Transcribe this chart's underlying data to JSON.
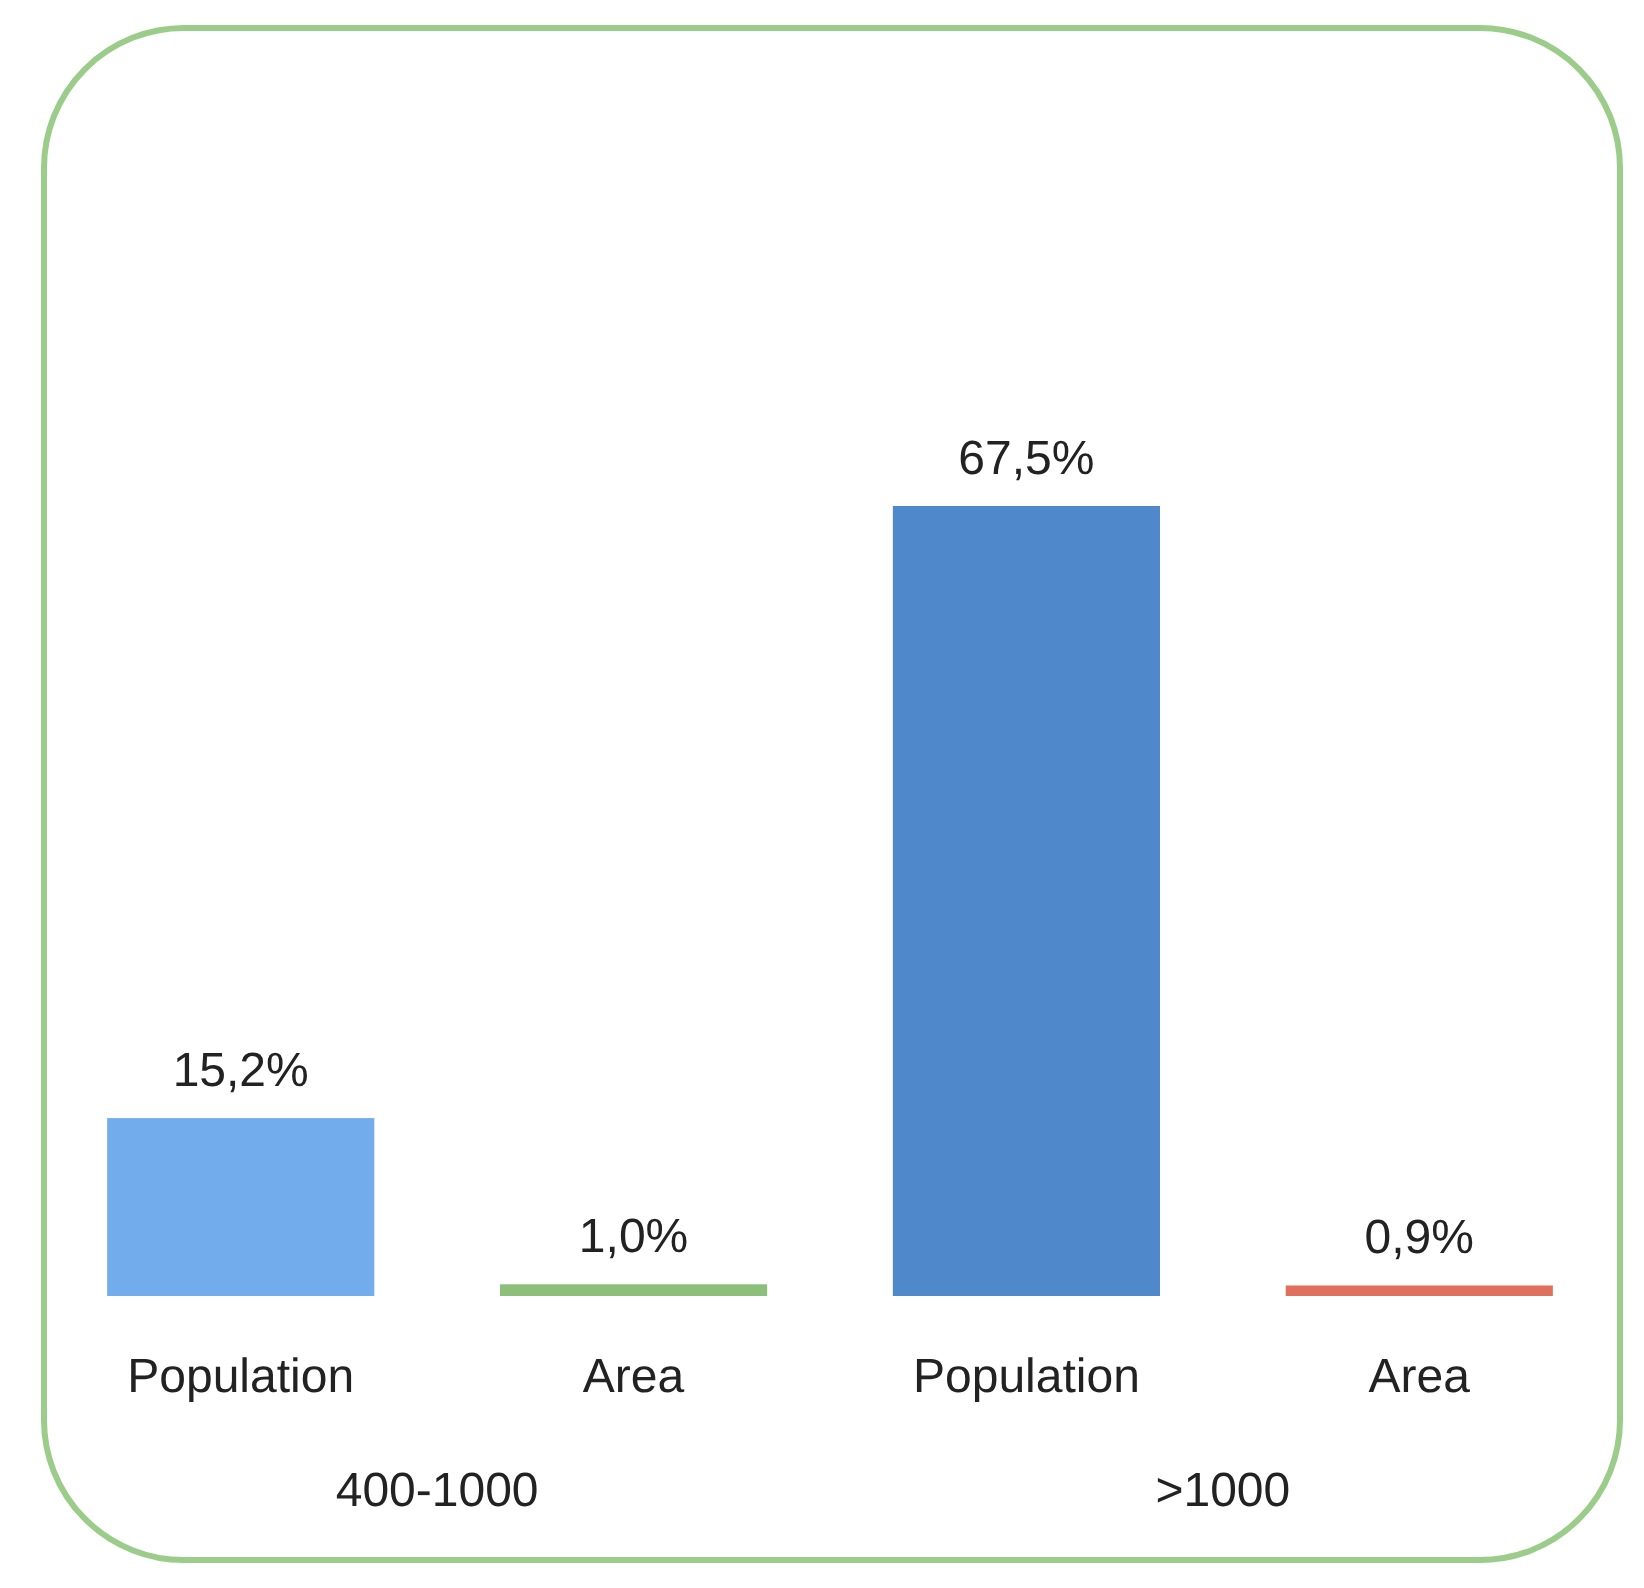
{
  "chart_data": {
    "type": "bar",
    "categories": [
      "Population",
      "Area",
      "Population",
      "Area"
    ],
    "values": [
      15.2,
      1.0,
      67.5,
      0.9
    ],
    "colors": [
      "#72acec",
      "#8cc07a",
      "#5088cc",
      "#e0705e"
    ],
    "value_labels": [
      "15,2%",
      "1,0%",
      "67,5%",
      "0,9%"
    ],
    "annotations": [
      "400-1000",
      ">1000"
    ]
  }
}
